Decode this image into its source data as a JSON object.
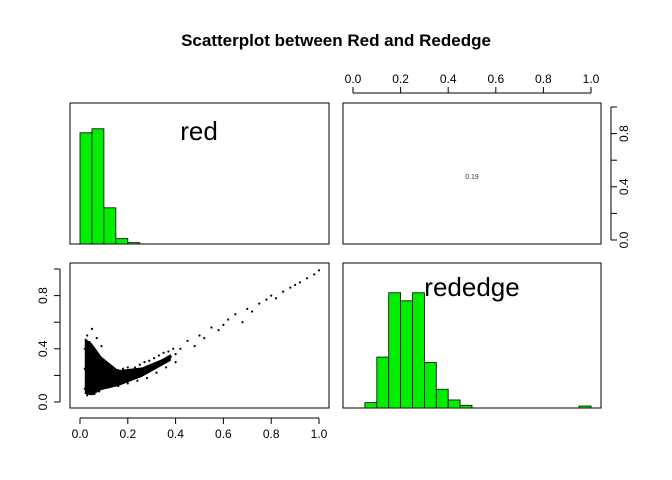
{
  "chart_data": {
    "type": "scatter",
    "title": "Scatterplot between Red and Rededge",
    "variables": [
      "red",
      "rededge"
    ],
    "bar_color": "#00ee00",
    "point_color": "#000000",
    "axis_range": [
      0.0,
      1.0
    ],
    "ticks": [
      "0.0",
      "0.2",
      "0.4",
      "0.6",
      "0.8",
      "1.0"
    ],
    "correlation_label": "0.19",
    "hist_red": {
      "bin_width": 0.05,
      "bin_starts": [
        0.0,
        0.05,
        0.1,
        0.15,
        0.2
      ],
      "counts": [
        0.83,
        0.86,
        0.27,
        0.04,
        0.01
      ]
    },
    "hist_rededge": {
      "bin_width": 0.05,
      "bin_starts": [
        0.05,
        0.1,
        0.15,
        0.2,
        0.25,
        0.3,
        0.35,
        0.4,
        0.45,
        0.95
      ],
      "counts": [
        0.04,
        0.38,
        0.86,
        0.8,
        0.86,
        0.34,
        0.14,
        0.06,
        0.02,
        0.015
      ]
    },
    "scatter": {
      "x": [
        0.02,
        0.03,
        0.04,
        0.05,
        0.06,
        0.07,
        0.08,
        0.09,
        0.1,
        0.12,
        0.14,
        0.16,
        0.18,
        0.2,
        0.22,
        0.24,
        0.26,
        0.28,
        0.3,
        0.32,
        0.34,
        0.36,
        0.38,
        0.4,
        0.03,
        0.05,
        0.07,
        0.09,
        0.11,
        0.13,
        0.15,
        0.17,
        0.19,
        0.21,
        0.23,
        0.25,
        0.27,
        0.29,
        0.31,
        0.33,
        0.35,
        0.37,
        0.39,
        0.02,
        0.04,
        0.06,
        0.08,
        0.1,
        0.12,
        0.14,
        0.16,
        0.18,
        0.2,
        0.03,
        0.05,
        0.07,
        0.09,
        0.04,
        0.06,
        0.08,
        0.03,
        0.02,
        0.05,
        0.12,
        0.16,
        0.2,
        0.24,
        0.28,
        0.32,
        0.36,
        0.4,
        0.42,
        0.45,
        0.48,
        0.5,
        0.52,
        0.55,
        0.58,
        0.6,
        0.62,
        0.65,
        0.68,
        0.7,
        0.72,
        0.75,
        0.78,
        0.8,
        0.82,
        0.85,
        0.88,
        0.9,
        0.92,
        0.95,
        0.98,
        1.0
      ],
      "y": [
        0.1,
        0.12,
        0.14,
        0.16,
        0.18,
        0.2,
        0.19,
        0.17,
        0.16,
        0.15,
        0.15,
        0.16,
        0.17,
        0.18,
        0.2,
        0.21,
        0.23,
        0.25,
        0.27,
        0.28,
        0.3,
        0.32,
        0.34,
        0.36,
        0.3,
        0.32,
        0.3,
        0.28,
        0.26,
        0.22,
        0.2,
        0.2,
        0.22,
        0.24,
        0.26,
        0.28,
        0.3,
        0.31,
        0.33,
        0.35,
        0.37,
        0.38,
        0.4,
        0.4,
        0.45,
        0.38,
        0.34,
        0.3,
        0.27,
        0.25,
        0.24,
        0.25,
        0.26,
        0.5,
        0.55,
        0.48,
        0.42,
        0.07,
        0.06,
        0.08,
        0.05,
        0.25,
        0.12,
        0.11,
        0.12,
        0.14,
        0.16,
        0.18,
        0.22,
        0.26,
        0.3,
        0.4,
        0.46,
        0.42,
        0.5,
        0.48,
        0.56,
        0.54,
        0.58,
        0.62,
        0.66,
        0.6,
        0.7,
        0.68,
        0.74,
        0.77,
        0.8,
        0.78,
        0.83,
        0.86,
        0.88,
        0.9,
        0.93,
        0.96,
        0.99
      ]
    }
  }
}
